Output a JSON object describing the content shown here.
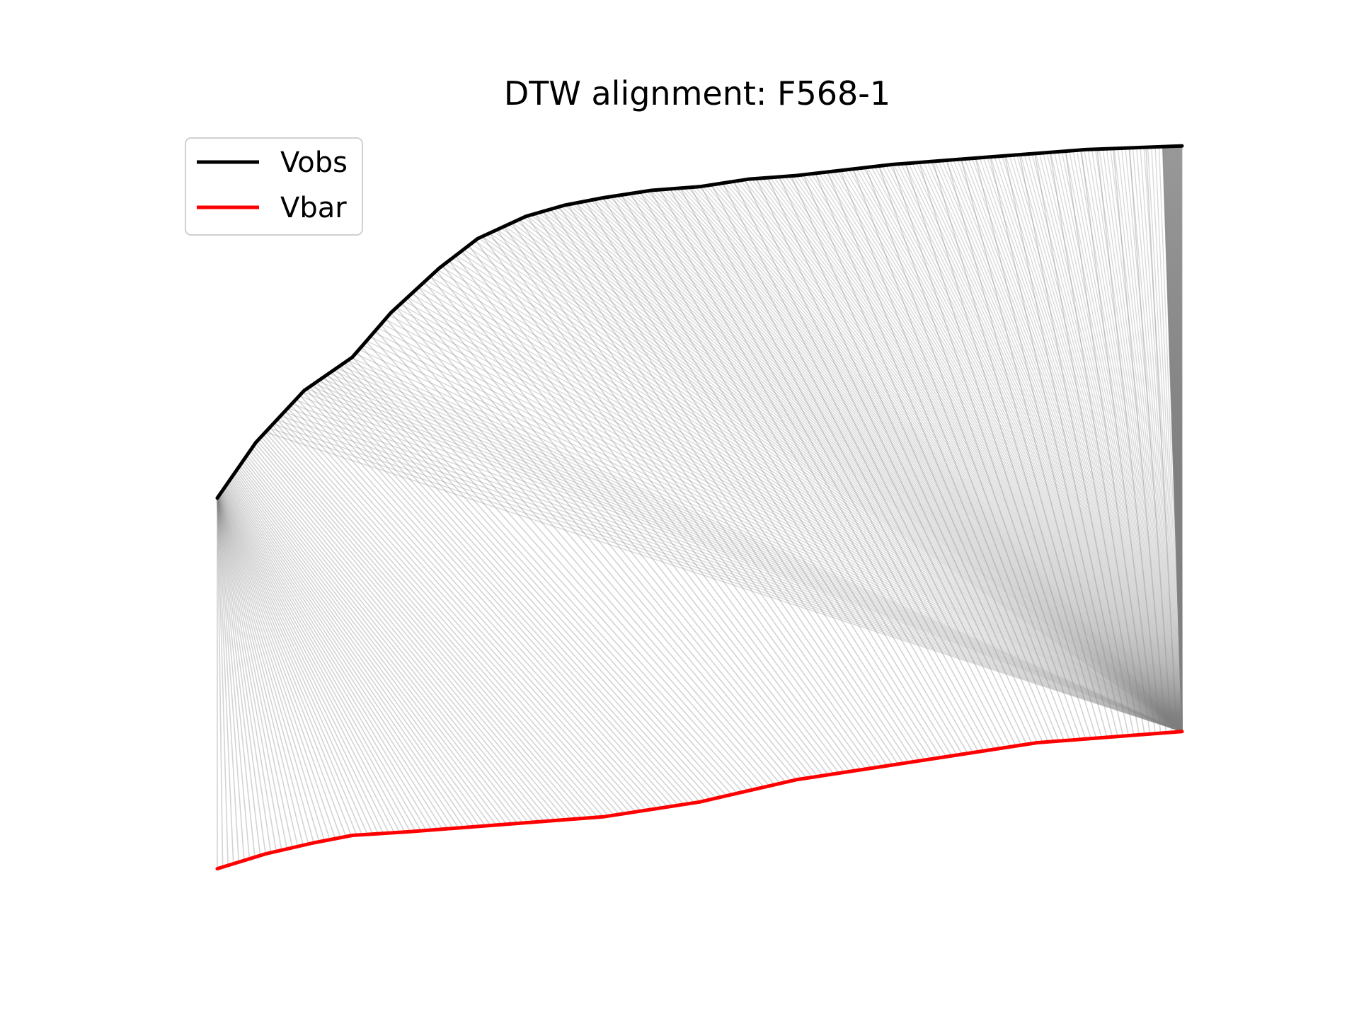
{
  "chart_data": {
    "type": "line",
    "title": "DTW alignment: F568-1",
    "xlabel": "",
    "ylabel": "",
    "axes_visible": false,
    "grid": false,
    "legend_position": "top-left",
    "series": [
      {
        "name": "Vobs",
        "color": "#000000",
        "x": [
          0.0,
          0.04,
          0.09,
          0.14,
          0.18,
          0.23,
          0.27,
          0.32,
          0.36,
          0.4,
          0.45,
          0.5,
          0.55,
          0.6,
          0.7,
          0.8,
          0.9,
          1.0
        ],
        "y": [
          0.0,
          0.15,
          0.29,
          0.38,
          0.5,
          0.62,
          0.7,
          0.76,
          0.79,
          0.81,
          0.83,
          0.84,
          0.86,
          0.87,
          0.9,
          0.92,
          0.94,
          0.95
        ]
      },
      {
        "name": "Vbar",
        "color": "#ff0000",
        "x": [
          0.0,
          0.05,
          0.1,
          0.14,
          0.2,
          0.25,
          0.3,
          0.35,
          0.4,
          0.45,
          0.5,
          0.55,
          0.6,
          0.65,
          0.7,
          0.75,
          0.8,
          0.85,
          0.9,
          0.95,
          1.0
        ],
        "y": [
          -1.0,
          -0.96,
          -0.93,
          -0.91,
          -0.9,
          -0.89,
          -0.88,
          -0.87,
          -0.86,
          -0.84,
          -0.82,
          -0.79,
          -0.76,
          -0.74,
          -0.72,
          -0.7,
          -0.68,
          -0.66,
          -0.65,
          -0.64,
          -0.63
        ]
      }
    ],
    "xlim": [
      0,
      1
    ],
    "ylim": [
      -1.1,
      1.0
    ],
    "alignment_color": "#808080"
  }
}
